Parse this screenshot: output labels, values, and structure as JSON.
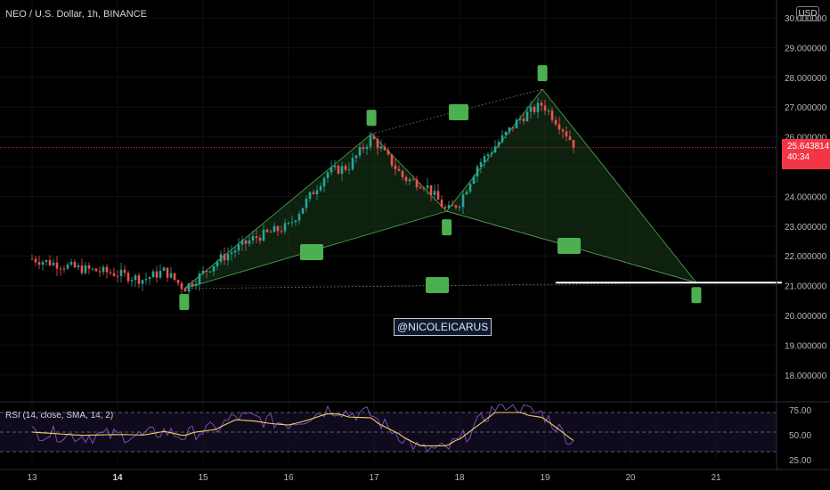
{
  "header": {
    "symbol_line": "NEO / U.S. Dollar, 1h, BINANCE",
    "currency_button": "USD"
  },
  "watermark": "@NICOLEICARUS",
  "last_price": {
    "value": "25.643814",
    "countdown": "40:34"
  },
  "rsi": {
    "label": "RSI (14, close, SMA, 14, 2)",
    "ticks": [
      "75.00",
      "50.00",
      "25.00"
    ]
  },
  "price_axis": {
    "ticks": [
      "30.000000",
      "29.000000",
      "28.000000",
      "27.000000",
      "26.000000",
      "24.000000",
      "23.000000",
      "22.000000",
      "21.000000",
      "20.000000",
      "19.000000",
      "18.000000"
    ]
  },
  "time_axis": {
    "labels": [
      "13",
      "14",
      "15",
      "16",
      "17",
      "18",
      "19",
      "20",
      "21"
    ]
  },
  "colors": {
    "up": "#26a69a",
    "down": "#ef5350",
    "pattern_fill": "#1a3a1a",
    "pattern_line": "#4caf50",
    "marker": "#4caf50",
    "rsi_line": "#7e57c2",
    "rsi_ma": "#f0d060",
    "price_tag": "#f23645"
  },
  "chart_data": {
    "type": "candlestick",
    "instrument": "NEO / U.S. Dollar",
    "interval": "1h",
    "exchange": "BINANCE",
    "ylim": [
      17.4,
      30.4
    ],
    "last_price": 25.643814,
    "harmonic_pattern": {
      "points": [
        {
          "day": 14.78,
          "price": 20.9
        },
        {
          "day": 16.97,
          "price": 26.1
        },
        {
          "day": 17.85,
          "price": 23.5
        },
        {
          "day": 18.97,
          "price": 27.6
        },
        {
          "day": 20.77,
          "price": 21.1
        }
      ]
    },
    "target_level": 21.1,
    "rsi": {
      "period": 14,
      "ma": "SMA",
      "ylim": [
        20,
        80
      ],
      "levels": [
        70,
        50,
        30
      ]
    }
  }
}
